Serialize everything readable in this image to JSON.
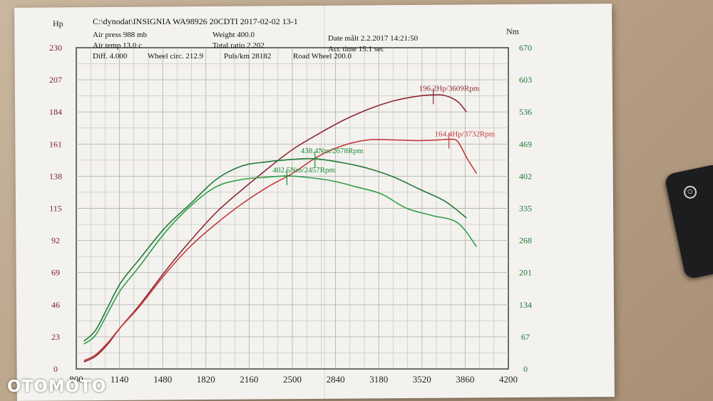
{
  "header": {
    "title": "C:\\dynodat\\INSIGNIA WA98926 20CDTI 2017-02-02 13-1",
    "air_press": "Air press   988 mb",
    "weight": "Weight   400.0",
    "air_temp": "Air temp   13.0 c",
    "total_ratio": "Total ratio 2.202",
    "diff": "Diff.    4.000",
    "wheel_circ": "Wheel circ. 212.9",
    "puls": "Puls/km   28182",
    "road_wheel": "Road Wheel 200.0",
    "date": "Date målt 2.2.2017 14:21:50",
    "acc_time": "Acc time   15.1 sec"
  },
  "watermark": "OTOMOTO",
  "remote_icon": "power-icon",
  "colors": {
    "power_dark": "#8b2a33",
    "power_light": "#c23a3a",
    "torque_dark": "#1f7a3a",
    "torque_light": "#2ea04a",
    "grid": "#b5b5b5"
  },
  "chart_data": {
    "type": "line",
    "xlabel": "",
    "ylabel_left": "Hp",
    "ylabel_right": "Nm",
    "x_range": [
      800,
      4200
    ],
    "x_ticks": [
      "800",
      "1140",
      "1480",
      "1820",
      "2160",
      "2500",
      "2840",
      "3180",
      "3520",
      "3860",
      "4200"
    ],
    "y_left_range": [
      0,
      230
    ],
    "y_left_ticks": [
      "0",
      "23",
      "46",
      "69",
      "92",
      "115",
      "138",
      "161",
      "184",
      "207",
      "230"
    ],
    "y_right_range": [
      0,
      670
    ],
    "y_right_ticks": [
      "0",
      "67",
      "134",
      "201",
      "268",
      "335",
      "402",
      "469",
      "536",
      "603",
      "670"
    ],
    "grid": true,
    "series": [
      {
        "axis": "left",
        "color": "#8b2a33",
        "x": [
          860,
          950,
          1050,
          1150,
          1300,
          1500,
          1700,
          1900,
          2100,
          2300,
          2500,
          2700,
          2900,
          3100,
          3300,
          3500,
          3609,
          3700,
          3800,
          3870
        ],
        "y": [
          5,
          9,
          18,
          30,
          46,
          70,
          92,
          112,
          128,
          143,
          157,
          168,
          178,
          186,
          192,
          195.5,
          196.2,
          195.8,
          191.5,
          184
        ]
      },
      {
        "axis": "left",
        "color": "#c23a3a",
        "x": [
          860,
          950,
          1050,
          1150,
          1300,
          1500,
          1700,
          1900,
          2100,
          2300,
          2500,
          2700,
          2900,
          3100,
          3300,
          3500,
          3650,
          3732,
          3800,
          3880,
          3950
        ],
        "y": [
          6,
          10,
          19,
          30,
          45,
          68,
          88,
          104,
          118,
          130,
          140,
          152,
          160,
          164,
          164,
          163.5,
          164,
          164.4,
          163,
          150,
          140
        ]
      },
      {
        "axis": "right",
        "color": "#1f7a3a",
        "x": [
          860,
          950,
          1050,
          1150,
          1300,
          1500,
          1700,
          1900,
          2100,
          2300,
          2500,
          2678,
          2900,
          3100,
          3300,
          3500,
          3700,
          3870
        ],
        "y": [
          58,
          80,
          130,
          180,
          230,
          295,
          345,
          395,
          423,
          432,
          437,
          438.4,
          430,
          418,
          400,
          375,
          350,
          315
        ]
      },
      {
        "axis": "right",
        "color": "#2ea04a",
        "x": [
          860,
          950,
          1050,
          1150,
          1300,
          1500,
          1700,
          1900,
          2100,
          2300,
          2457,
          2600,
          2800,
          3000,
          3200,
          3400,
          3600,
          3800,
          3950
        ],
        "y": [
          52,
          70,
          118,
          165,
          215,
          285,
          340,
          380,
          395,
          400,
          402.5,
          400,
          393,
          380,
          365,
          335,
          320,
          305,
          255
        ]
      }
    ],
    "annotations": [
      {
        "text": "196.2Hp/3609Rpm",
        "x": 3609,
        "y": 196.2,
        "axis": "left",
        "color": "#8b2a33"
      },
      {
        "text": "164.4Hp/3732Rpm",
        "x": 3732,
        "y": 164.4,
        "axis": "left",
        "color": "#c23a3a"
      },
      {
        "text": "438.4Nm/2678Rpm",
        "x": 2678,
        "y": 438.4,
        "axis": "right",
        "color": "#1a8a3a"
      },
      {
        "text": "402.5Nm/2457Rpm",
        "x": 2457,
        "y": 402.5,
        "axis": "right",
        "color": "#1a8a3a"
      }
    ]
  }
}
